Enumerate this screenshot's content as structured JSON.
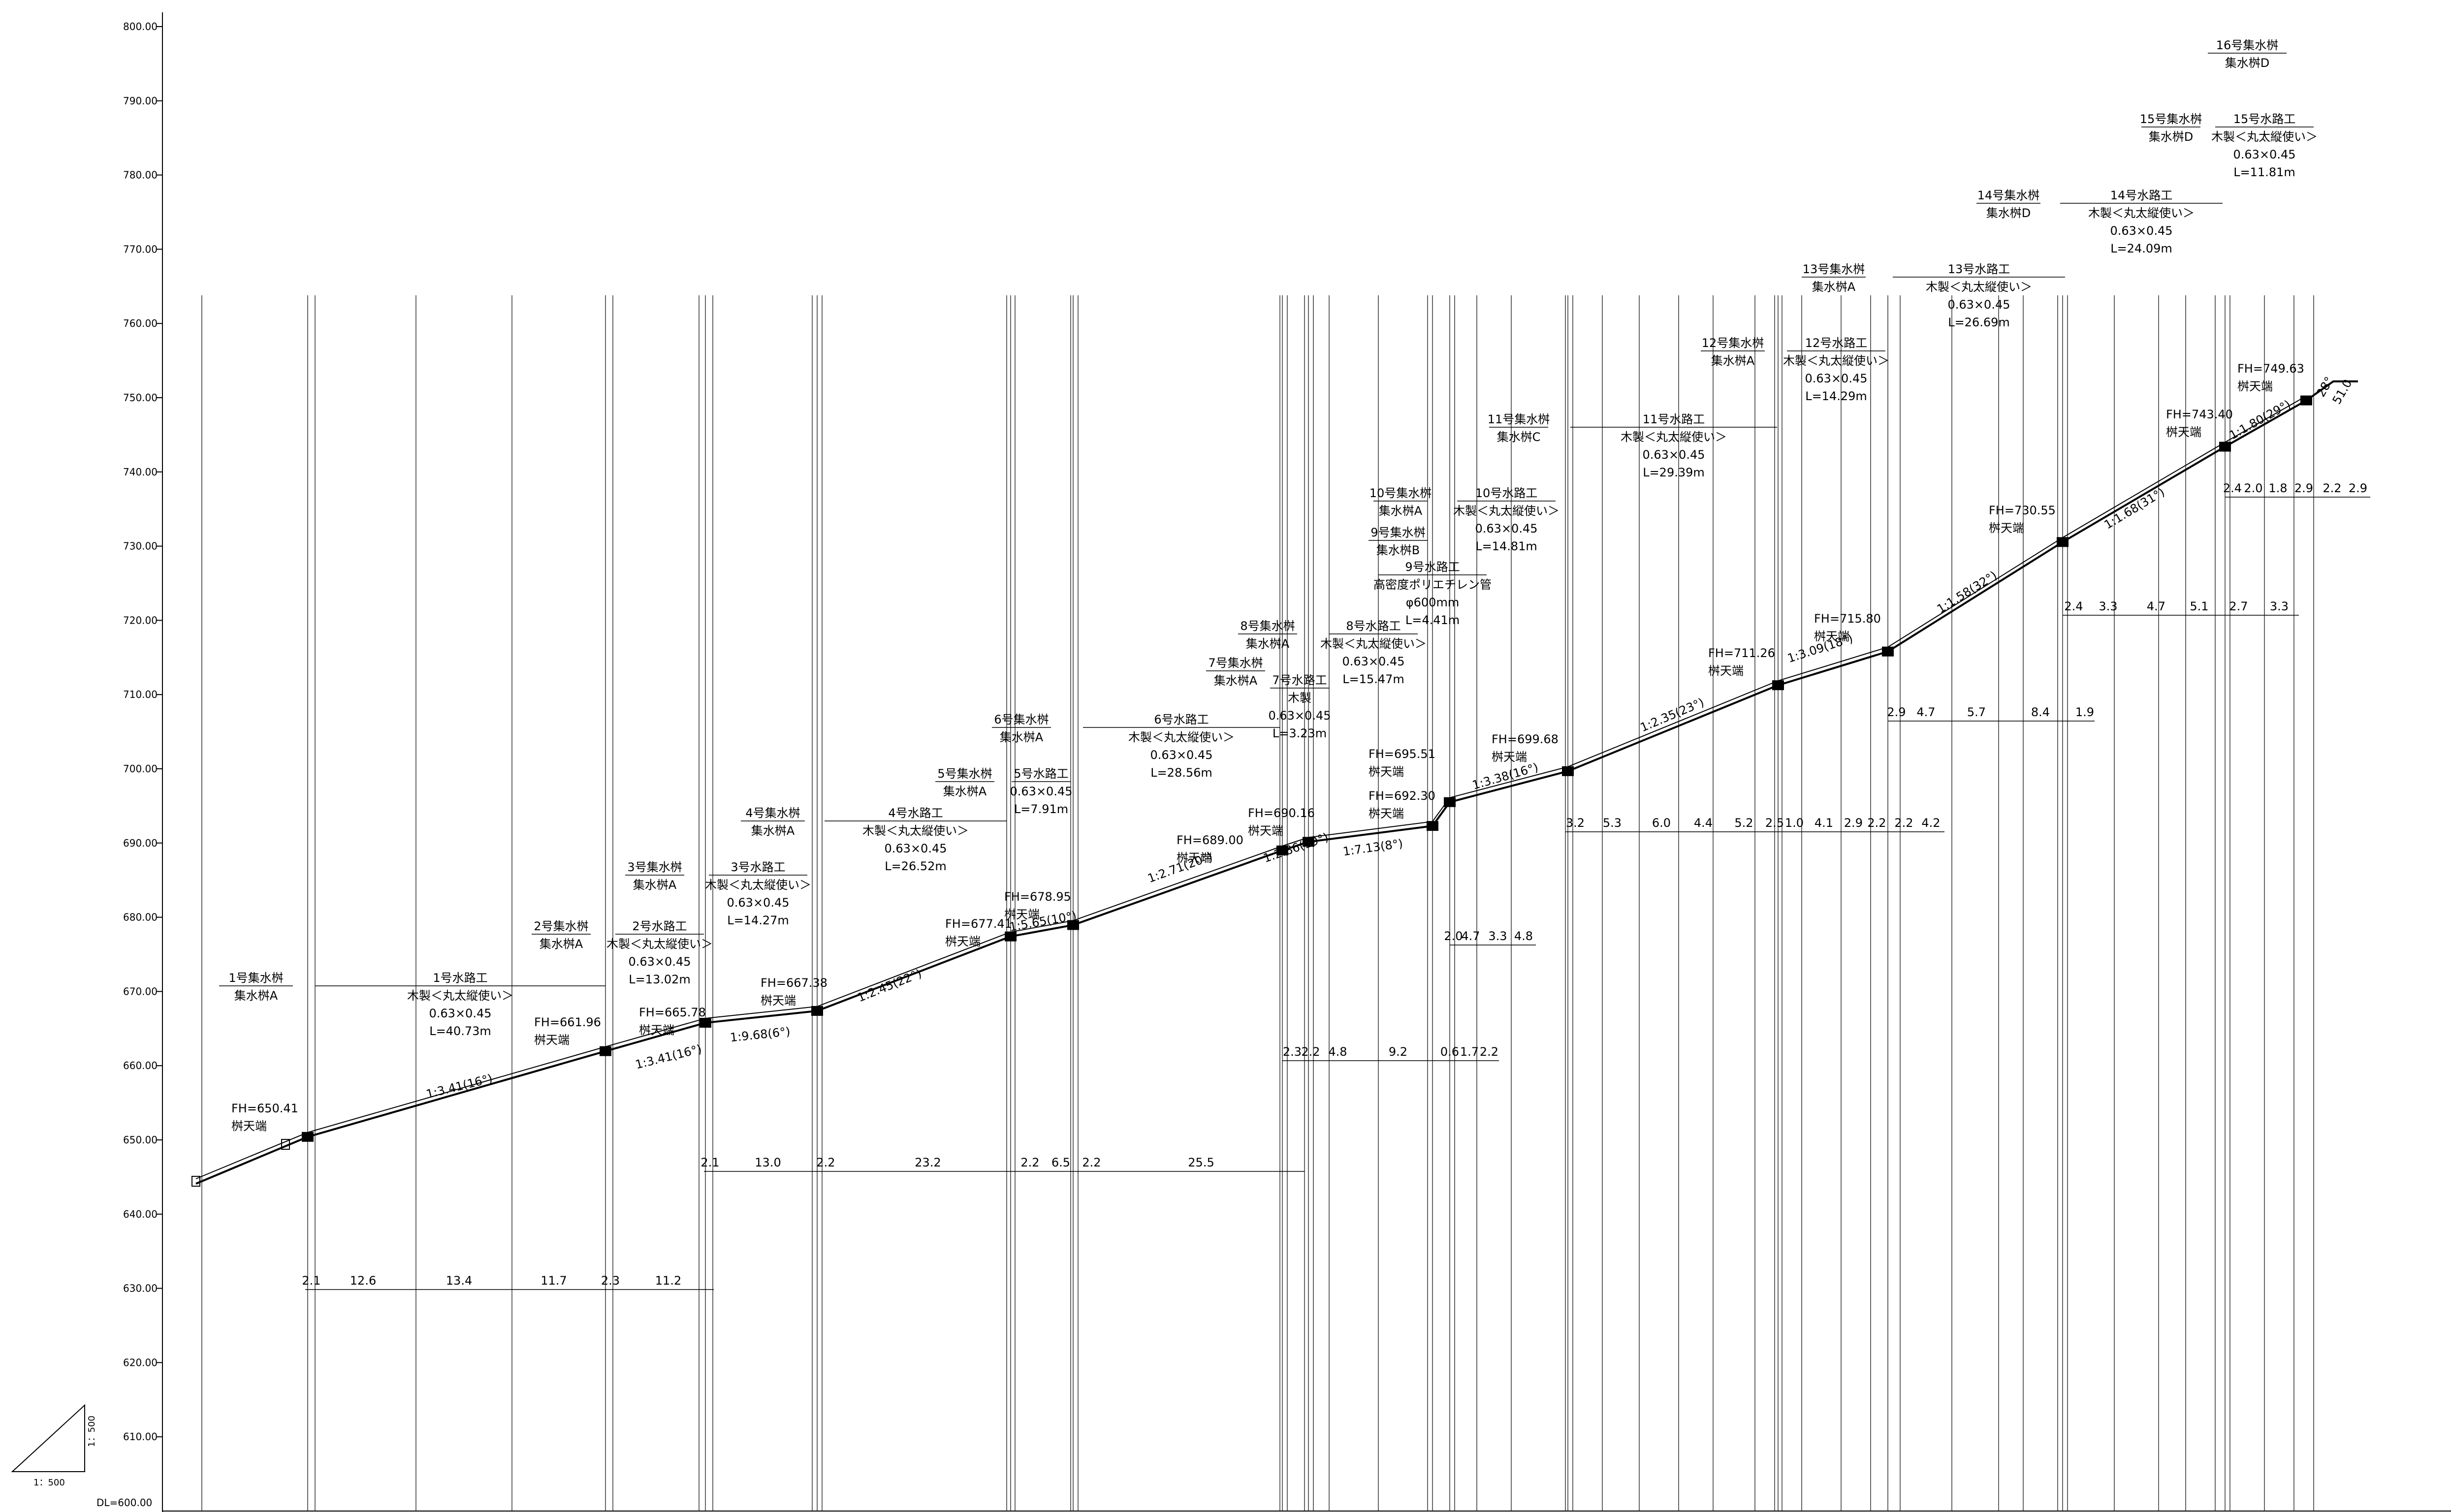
{
  "drawing": {
    "datum_label": "DL=600.00",
    "scale_v_label": "1：500",
    "scale_h_label": "1：500"
  },
  "axis": {
    "ticks": [
      "800.00",
      "790.00",
      "780.00",
      "770.00",
      "760.00",
      "750.00",
      "740.00",
      "730.00",
      "720.00",
      "710.00",
      "700.00",
      "690.00",
      "680.00",
      "670.00",
      "660.00",
      "650.00",
      "640.00",
      "630.00",
      "620.00",
      "610.00"
    ]
  },
  "structures": {
    "s1": {
      "name": "1号集水桝",
      "type": "集水桝A",
      "fh": "FH=650.41",
      "fh_note": "桝天端"
    },
    "c1": {
      "name": "1号水路工",
      "material": "木製＜丸太縦使い＞",
      "size": "0.63×0.45",
      "length": "L=40.73m"
    },
    "s2": {
      "name": "2号集水桝",
      "type": "集水桝A",
      "fh": "FH=661.96",
      "fh_note": "桝天端"
    },
    "c2": {
      "name": "2号水路工",
      "material": "木製＜丸太縦使い＞",
      "size": "0.63×0.45",
      "length": "L=13.02m"
    },
    "s3": {
      "name": "3号集水桝",
      "type": "集水桝A",
      "fh": "FH=665.78",
      "fh_note": "桝天端"
    },
    "c3": {
      "name": "3号水路工",
      "material": "木製＜丸太縦使い＞",
      "size": "0.63×0.45",
      "length": "L=14.27m"
    },
    "s4": {
      "name": "4号集水桝",
      "type": "集水桝A",
      "fh": "FH=667.38",
      "fh_note": "桝天端"
    },
    "c4": {
      "name": "4号水路工",
      "material": "木製＜丸太縦使い＞",
      "size": "0.63×0.45",
      "length": "L=26.52m"
    },
    "s5": {
      "name": "5号集水桝",
      "type": "集水桝A",
      "fh": "FH=677.41",
      "fh_note": "桝天端"
    },
    "c5": {
      "name": "5号水路工",
      "size": "0.63×0.45",
      "length": "L=7.91m"
    },
    "s6": {
      "name": "6号集水桝",
      "type": "集水桝A",
      "fh": "FH=678.95",
      "fh_note": "桝天端"
    },
    "c6": {
      "name": "6号水路工",
      "material": "木製＜丸太縦使い＞",
      "size": "0.63×0.45",
      "length": "L=28.56m"
    },
    "s7": {
      "name": "7号集水桝",
      "type": "集水桝A",
      "fh": "FH=689.00",
      "fh_note": "桝天端"
    },
    "c7": {
      "name": "7号水路工",
      "material": "木製",
      "size": "0.63×0.45",
      "length": "L=3.23m"
    },
    "s8": {
      "name": "8号集水桝",
      "type": "集水桝A",
      "fh": "FH=690.16",
      "fh_note": "桝天端"
    },
    "c8": {
      "name": "8号水路工",
      "material": "木製＜丸太縦使い＞",
      "size": "0.63×0.45",
      "length": "L=15.47m"
    },
    "s9": {
      "name": "9号集水桝",
      "type": "集水桝B",
      "fh": "FH=692.30",
      "fh_note": "桝天端"
    },
    "c9": {
      "name": "9号水路工",
      "material": "高密度ポリエチレン管",
      "size": "φ600mm",
      "length": "L=4.41m"
    },
    "s10": {
      "name": "10号集水桝",
      "type": "集水桝A",
      "fh": "FH=695.51",
      "fh_note": "桝天端"
    },
    "c10": {
      "name": "10号水路工",
      "material": "木製＜丸太縦使い＞",
      "size": "0.63×0.45",
      "length": "L=14.81m"
    },
    "s11": {
      "name": "11号集水桝",
      "type": "集水桝C",
      "fh": "FH=699.68",
      "fh_note": "桝天端"
    },
    "c11": {
      "name": "11号水路工",
      "material": "木製＜丸太縦使い＞",
      "size": "0.63×0.45",
      "length": "L=29.39m"
    },
    "s12": {
      "name": "12号集水桝",
      "type": "集水桝A",
      "fh": "FH=711.26",
      "fh_note": "桝天端"
    },
    "c12": {
      "name": "12号水路工",
      "material": "木製＜丸太縦使い＞",
      "size": "0.63×0.45",
      "length": "L=14.29m"
    },
    "s13": {
      "name": "13号集水桝",
      "type": "集水桝A",
      "fh": "FH=715.80",
      "fh_note": "桝天端"
    },
    "c13": {
      "name": "13号水路工",
      "material": "木製＜丸太縦使い＞",
      "size": "0.63×0.45",
      "length": "L=26.69m"
    },
    "s14": {
      "name": "14号集水桝",
      "type": "集水桝D",
      "fh": "FH=730.55",
      "fh_note": "桝天端"
    },
    "c14": {
      "name": "14号水路工",
      "material": "木製＜丸太縦使い＞",
      "size": "0.63×0.45",
      "length": "L=24.09m"
    },
    "s15": {
      "name": "15号集水桝",
      "type": "集水桝D",
      "fh": "FH=743.40",
      "fh_note": "桝天端"
    },
    "c15": {
      "name": "15号水路工",
      "material": "木製＜丸太縦使い＞",
      "size": "0.63×0.45",
      "length": "L=11.81m"
    },
    "s16": {
      "name": "16号集水桝",
      "type": "集水桝D",
      "fh": "FH=749.63",
      "fh_note": "桝天端"
    }
  },
  "slopes": [
    "1:3.41(16°)",
    "1:3.41(16°)",
    "1:9.68(6°)",
    "1:2.45(22°)",
    "1:5.65(10°)",
    "1:2.71(20°)",
    "1:2.86(19°)",
    "1:7.13(8°)",
    "1:3.38(16°)",
    "1:2.35(23°)",
    "1:3.09(18°)",
    "1:1.58(32°)",
    "1:1.68(31°)",
    "1:1.80(29°)",
    "28°",
    "51.0"
  ],
  "dimensions": {
    "row1": [
      "2.1",
      "12.6",
      "13.4",
      "11.7",
      "2.3",
      "11.2"
    ],
    "row2": [
      "2.1",
      "13.0",
      "2.2",
      "23.2",
      "2.2",
      "6.5",
      "2.2",
      "25.5"
    ],
    "row3": [
      "2.3",
      "2.2",
      "4.8",
      "9.2",
      "0.6",
      "1.7",
      "2.2"
    ],
    "row4": [
      "2.0",
      "4.7",
      "3.3",
      "4.8"
    ],
    "row5": [
      "3.2",
      "5.3",
      "6.0",
      "4.4",
      "5.2",
      "2.5",
      "1.0",
      "4.1",
      "2.9",
      "2.2",
      "2.2",
      "4.2"
    ],
    "row6": [
      "2.9",
      "4.7",
      "5.7",
      "8.4",
      "1.9"
    ],
    "row7": [
      "2.4",
      "3.3",
      "4.7",
      "5.1",
      "2.7",
      "3.3"
    ],
    "row8": [
      "2.4",
      "2.0",
      "1.8",
      "2.9",
      "2.2",
      "2.9"
    ]
  }
}
